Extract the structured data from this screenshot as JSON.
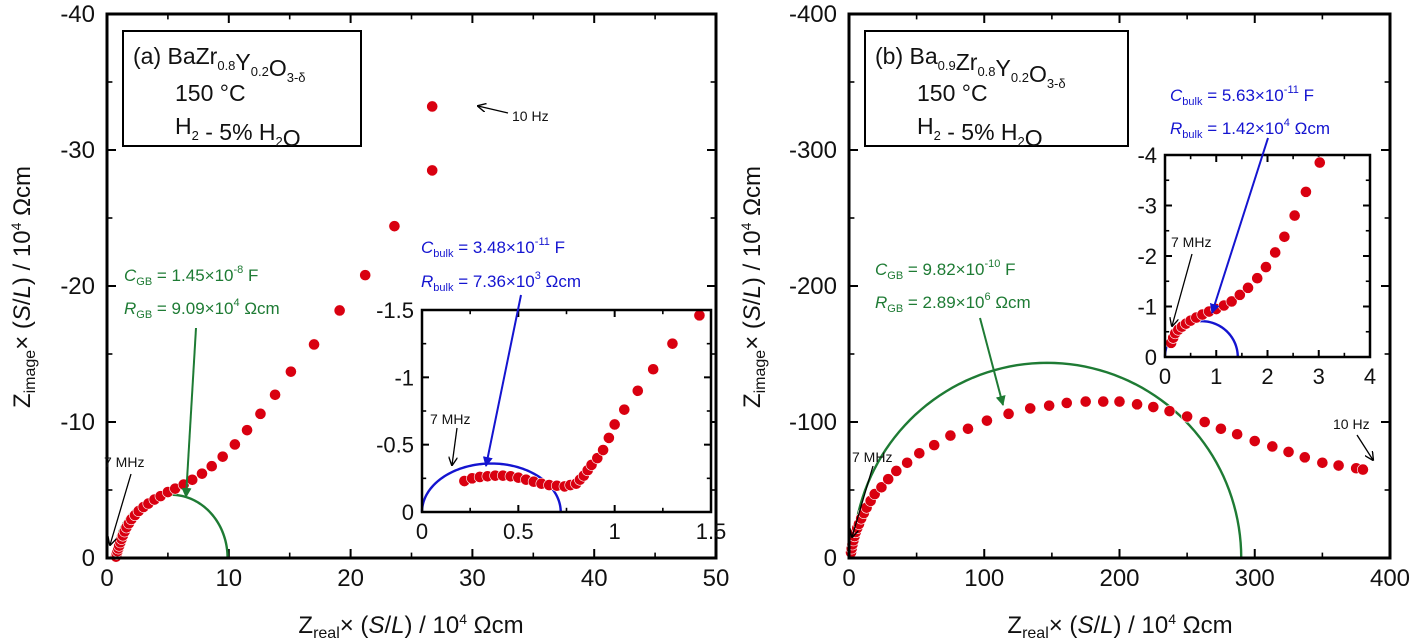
{
  "colors": {
    "data_point": "#d90010",
    "gb_fit": "#1e7b34",
    "bulk_fit": "#1414d0",
    "axis": "#000000",
    "annotation": "#000000"
  },
  "chart_data": [
    {
      "id": "a",
      "type": "scatter",
      "panel_label": "(a)",
      "composition": {
        "parts": [
          {
            "t": "BaZr",
            "sub": "0.8"
          },
          {
            "t": "Y",
            "sub": "0.2"
          },
          {
            "t": "O",
            "sub": "3-δ"
          }
        ]
      },
      "temperature": "150 °C",
      "atmosphere": {
        "parts": [
          {
            "t": "H",
            "sub": "2"
          },
          {
            "t": " - 5% H",
            "sub": "2"
          },
          {
            "t": "O",
            "sub": ""
          }
        ]
      },
      "xlabel": {
        "main": "Z",
        "sub": "real",
        "rest": "× (S/L) / 10",
        "sup": "4",
        "unit": " Ωcm"
      },
      "ylabel": {
        "main": "Z",
        "sub": "image",
        "rest": "× (S/L) / 10",
        "sup": "4",
        "unit": " Ωcm"
      },
      "xlim": [
        0,
        50
      ],
      "ylim": [
        0,
        -40
      ],
      "xticks": [
        0,
        10,
        20,
        30,
        40,
        50
      ],
      "xtick_labels": [
        "0",
        "10",
        "20",
        "30",
        "40",
        "50"
      ],
      "yticks": [
        0,
        -10,
        -20,
        -30,
        -40
      ],
      "ytick_labels": [
        "0",
        "-10",
        "-20",
        "-30",
        "-40"
      ],
      "series": [
        {
          "name": "measured",
          "marker": "circle",
          "x": [
            0.74,
            0.8,
            0.86,
            0.93,
            1.0,
            1.1,
            1.2,
            1.3,
            1.45,
            1.6,
            1.8,
            2.0,
            2.3,
            2.6,
            3.0,
            3.4,
            3.9,
            4.4,
            5.0,
            5.6,
            6.3,
            7.0,
            7.8,
            8.6,
            9.5,
            10.5,
            11.5,
            12.6,
            13.8,
            15.1,
            17.0,
            19.1,
            21.2,
            23.6,
            26.7
          ],
          "y": [
            -0.1,
            -0.3,
            -0.5,
            -0.7,
            -0.9,
            -1.15,
            -1.4,
            -1.65,
            -1.95,
            -2.25,
            -2.55,
            -2.85,
            -3.15,
            -3.45,
            -3.75,
            -4.0,
            -4.3,
            -4.55,
            -4.85,
            -5.1,
            -5.4,
            -5.75,
            -6.2,
            -6.75,
            -7.45,
            -8.35,
            -9.4,
            -10.6,
            -12.0,
            -13.7,
            -15.7,
            -18.2,
            -20.8,
            -24.4,
            -28.5
          ]
        },
        {
          "name": "measured_last",
          "x": [
            26.7
          ],
          "y": [
            -33.2
          ]
        }
      ],
      "fit_arc": {
        "name": "GB fit",
        "x_start": 0.6,
        "x_end": 9.9
      },
      "fit_label": {
        "C_sym": "C",
        "C_sub": "GB",
        "C_val": " = 1.45×10",
        "C_exp": "-8",
        "C_unit": " F",
        "R_sym": "R",
        "R_sub": "GB",
        "R_val": " = 9.09×10",
        "R_exp": "4",
        "R_unit": " Ωcm"
      },
      "annotations": [
        {
          "text": "10 Hz"
        },
        {
          "text": "7 MHz"
        }
      ],
      "inset": {
        "xlim": [
          0,
          1.5
        ],
        "ylim": [
          0,
          -1.5
        ],
        "xticks": [
          0,
          0.5,
          1,
          1.5
        ],
        "xtick_labels": [
          "0",
          "0.5",
          "1",
          "1.5"
        ],
        "yticks": [
          0,
          -0.5,
          -1,
          -1.5
        ],
        "ytick_labels": [
          "0",
          "-0.5",
          "-1",
          "-1.5"
        ],
        "x": [
          0.22,
          0.26,
          0.3,
          0.34,
          0.38,
          0.42,
          0.46,
          0.5,
          0.54,
          0.58,
          0.62,
          0.66,
          0.7,
          0.74,
          0.77,
          0.8,
          0.82,
          0.84,
          0.86,
          0.88,
          0.91,
          0.94,
          0.97,
          1.0,
          1.05,
          1.12,
          1.2,
          1.3,
          1.44
        ],
        "y": [
          -0.23,
          -0.25,
          -0.26,
          -0.265,
          -0.27,
          -0.27,
          -0.265,
          -0.255,
          -0.24,
          -0.225,
          -0.21,
          -0.2,
          -0.195,
          -0.19,
          -0.2,
          -0.21,
          -0.24,
          -0.27,
          -0.31,
          -0.35,
          -0.4,
          -0.46,
          -0.55,
          -0.65,
          -0.76,
          -0.9,
          -1.06,
          -1.25,
          -1.46
        ],
        "fit_arc": {
          "name": "bulk fit",
          "x_start": 0.0,
          "x_end": 0.72
        },
        "fit_label": {
          "C_sym": "C",
          "C_sub": "bulk",
          "C_val": " = 3.48×10",
          "C_exp": "-11",
          "C_unit": " F",
          "R_sym": "R",
          "R_sub": "bulk",
          "R_val": " = 7.36×10",
          "R_exp": "3",
          "R_unit": " Ωcm"
        },
        "annotation": {
          "text": "7 MHz"
        }
      }
    },
    {
      "id": "b",
      "type": "scatter",
      "panel_label": "(b)",
      "composition": {
        "parts": [
          {
            "t": "Ba",
            "sub": "0.9"
          },
          {
            "t": "Zr",
            "sub": "0.8"
          },
          {
            "t": "Y",
            "sub": "0.2"
          },
          {
            "t": "O",
            "sub": "3-δ"
          }
        ]
      },
      "temperature": "150 °C",
      "atmosphere": {
        "parts": [
          {
            "t": "H",
            "sub": "2"
          },
          {
            "t": " - 5% H",
            "sub": "2"
          },
          {
            "t": "O",
            "sub": ""
          }
        ]
      },
      "xlabel": {
        "main": "Z",
        "sub": "real",
        "rest": "× (S/L) / 10",
        "sup": "4",
        "unit": " Ωcm"
      },
      "ylabel": {
        "main": "Z",
        "sub": "image",
        "rest": "× (S/L) / 10",
        "sup": "4",
        "unit": " Ωcm"
      },
      "xlim": [
        0,
        400
      ],
      "ylim": [
        0,
        -400
      ],
      "xticks": [
        0,
        100,
        200,
        300,
        400
      ],
      "xtick_labels": [
        "0",
        "100",
        "200",
        "300",
        "400"
      ],
      "yticks": [
        0,
        -100,
        -200,
        -300,
        -400
      ],
      "ytick_labels": [
        "0",
        "-100",
        "-200",
        "-300",
        "-400"
      ],
      "series": [
        {
          "name": "measured",
          "marker": "circle",
          "x": [
            1.5,
            2.0,
            2.6,
            3.3,
            4.1,
            5.0,
            6.1,
            7.4,
            9.0,
            11,
            13,
            16,
            19,
            24,
            29,
            35,
            43,
            52,
            63,
            75,
            88,
            102,
            118,
            134,
            148,
            161,
            175,
            188,
            200,
            213,
            225,
            237,
            250,
            263,
            275,
            287,
            300,
            313,
            325,
            337,
            350,
            362,
            375,
            380
          ],
          "y": [
            -4,
            -7,
            -10,
            -13,
            -16,
            -19,
            -22,
            -25,
            -29,
            -33,
            -37,
            -42,
            -47,
            -52,
            -58,
            -64,
            -70,
            -77,
            -83,
            -90,
            -95,
            -101,
            -106,
            -110,
            -112,
            -114,
            -115,
            -115,
            -115,
            -113,
            -111,
            -108,
            -104,
            -100,
            -95,
            -91,
            -86,
            -82,
            -78,
            -74,
            -70,
            -68,
            -66,
            -65
          ]
        }
      ],
      "fit_arc": {
        "name": "GB fit",
        "x_start": 3.0,
        "x_end": 290
      },
      "fit_label": {
        "C_sym": "C",
        "C_sub": "GB",
        "C_val": " = 9.82×10",
        "C_exp": "-10",
        "C_unit": " F",
        "R_sym": "R",
        "R_sub": "GB",
        "R_val": " = 2.89×10",
        "R_exp": "6",
        "R_unit": " Ωcm"
      },
      "annotations": [
        {
          "text": "10 Hz"
        },
        {
          "text": "7 MHz"
        }
      ],
      "inset": {
        "xlim": [
          0,
          4
        ],
        "ylim": [
          0,
          -4
        ],
        "xticks": [
          0,
          1,
          2,
          3,
          4
        ],
        "xtick_labels": [
          "0",
          "1",
          "2",
          "3",
          "4"
        ],
        "yticks": [
          0,
          -1,
          -2,
          -3,
          -4
        ],
        "ytick_labels": [
          "0",
          "-1",
          "-2",
          "-3",
          "-4"
        ],
        "x": [
          0.12,
          0.16,
          0.2,
          0.26,
          0.33,
          0.41,
          0.5,
          0.61,
          0.73,
          0.86,
          1.0,
          1.15,
          1.3,
          1.46,
          1.62,
          1.8,
          1.97,
          2.15,
          2.33,
          2.53,
          2.75,
          3.02
        ],
        "y": [
          -0.28,
          -0.38,
          -0.47,
          -0.54,
          -0.6,
          -0.66,
          -0.72,
          -0.78,
          -0.84,
          -0.9,
          -0.95,
          -1.02,
          -1.1,
          -1.23,
          -1.37,
          -1.56,
          -1.78,
          -2.07,
          -2.38,
          -2.8,
          -3.27,
          -3.85
        ],
        "fit_arc": {
          "name": "bulk fit",
          "x_start": 0.0,
          "x_end": 1.42
        },
        "fit_label": {
          "C_sym": "C",
          "C_sub": "bulk",
          "C_val": " = 5.63×10",
          "C_exp": "-11",
          "C_unit": " F",
          "R_sym": "R",
          "R_sub": "bulk",
          "R_val": " = 1.42×10",
          "R_exp": "4",
          "R_unit": " Ωcm"
        },
        "annotation": {
          "text": "7 MHz"
        }
      }
    }
  ]
}
